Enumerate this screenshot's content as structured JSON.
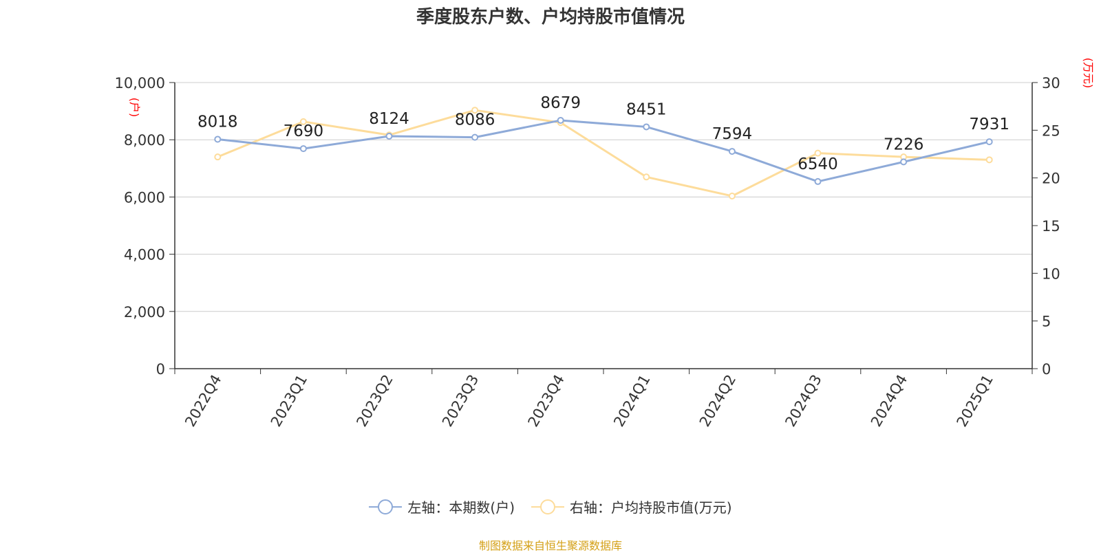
{
  "chart_data": {
    "type": "line",
    "title": "季度股东户数、户均持股市值情况",
    "categories": [
      "2022Q4",
      "2023Q1",
      "2023Q2",
      "2023Q3",
      "2023Q4",
      "2024Q1",
      "2024Q2",
      "2024Q3",
      "2024Q4",
      "2025Q1"
    ],
    "series": [
      {
        "name": "左轴：本期数(户)",
        "axis": "left",
        "color": "#8eaad8",
        "values": [
          8018,
          7690,
          8124,
          8086,
          8679,
          8451,
          7594,
          6540,
          7226,
          7931
        ]
      },
      {
        "name": "右轴：户均持股市值(万元)",
        "axis": "right",
        "color": "#fddc9b",
        "values": [
          22.2,
          25.9,
          24.5,
          27.1,
          25.8,
          20.1,
          18.1,
          22.6,
          22.2,
          21.9
        ]
      }
    ],
    "left_axis": {
      "unit": "(户)",
      "min": 0,
      "max": 10000,
      "ticks": [
        0,
        2000,
        4000,
        6000,
        8000,
        10000
      ],
      "tick_labels": [
        "0",
        "2,000",
        "4,000",
        "6,000",
        "8,000",
        "10,000"
      ]
    },
    "right_axis": {
      "unit": "(万元)",
      "min": 0,
      "max": 30,
      "ticks": [
        0,
        5,
        10,
        15,
        20,
        25,
        30
      ],
      "tick_labels": [
        "0",
        "5",
        "10",
        "15",
        "20",
        "25",
        "30"
      ]
    },
    "data_labels_series": 0,
    "grid": true,
    "legend_position": "bottom"
  },
  "source_text": "制图数据来自恒生聚源数据库",
  "colors": {
    "axis_unit": "#ff0000",
    "source": "#d4a017"
  }
}
